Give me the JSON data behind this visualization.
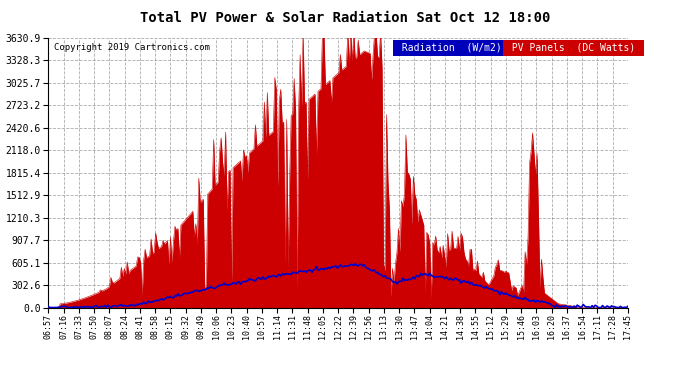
{
  "title": "Total PV Power & Solar Radiation Sat Oct 12 18:00",
  "copyright_text": "Copyright 2019 Cartronics.com",
  "legend_label_rad": "Radiation  (W/m2)",
  "legend_label_pv": "PV Panels  (DC Watts)",
  "yticks": [
    0.0,
    302.6,
    605.1,
    907.7,
    1210.3,
    1512.9,
    1815.4,
    2118.0,
    2420.6,
    2723.2,
    3025.7,
    3328.3,
    3630.9
  ],
  "ymax": 3630.9,
  "bg_color": "#ffffff",
  "grid_color": "#888888",
  "red_fill_color": "#cc0000",
  "blue_line_color": "#0000cc",
  "x_tick_labels": [
    "06:57",
    "07:16",
    "07:33",
    "07:50",
    "08:07",
    "08:24",
    "08:41",
    "08:58",
    "09:15",
    "09:32",
    "09:49",
    "10:06",
    "10:23",
    "10:40",
    "10:57",
    "11:14",
    "11:31",
    "11:48",
    "12:05",
    "12:22",
    "12:39",
    "12:56",
    "13:13",
    "13:30",
    "13:47",
    "14:04",
    "14:21",
    "14:38",
    "14:55",
    "15:12",
    "15:29",
    "15:46",
    "16:03",
    "16:20",
    "16:37",
    "16:54",
    "17:11",
    "17:28",
    "17:45"
  ],
  "n_points": 390
}
